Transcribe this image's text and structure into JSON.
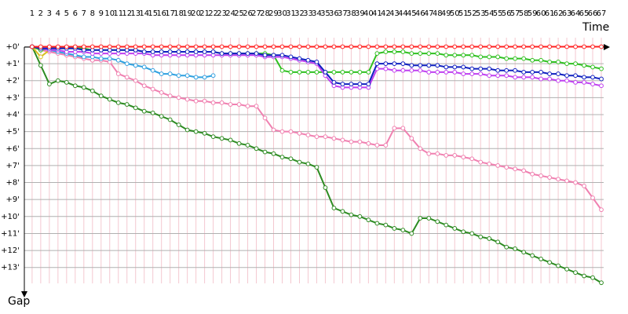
{
  "chart_data": {
    "type": "line",
    "x_label": "Time",
    "y_label": "Gap",
    "x": [
      1,
      2,
      3,
      4,
      5,
      6,
      7,
      8,
      9,
      10,
      11,
      12,
      13,
      14,
      15,
      16,
      17,
      18,
      19,
      20,
      21,
      22,
      23,
      24,
      25,
      26,
      27,
      28,
      29,
      30,
      31,
      32,
      33,
      34,
      35,
      36,
      37,
      38,
      39,
      40,
      41,
      42,
      43,
      44,
      45,
      46,
      47,
      48,
      49,
      50,
      51,
      52,
      53,
      54,
      55,
      56,
      57,
      58,
      59,
      60,
      61,
      62,
      63,
      64,
      65,
      66,
      67
    ],
    "xlim": [
      0.1,
      68
    ],
    "ylim": [
      -0.9,
      14.4
    ],
    "yticks": [
      {
        "value": 0,
        "label": "+0'"
      },
      {
        "value": 1,
        "label": "+1'"
      },
      {
        "value": 2,
        "label": "+2'"
      },
      {
        "value": 3,
        "label": "+3'"
      },
      {
        "value": 4,
        "label": "+4'"
      },
      {
        "value": 5,
        "label": "+5'"
      },
      {
        "value": 6,
        "label": "+6'"
      },
      {
        "value": 7,
        "label": "+7'"
      },
      {
        "value": 8,
        "label": "+8'"
      },
      {
        "value": 9,
        "label": "+9'"
      },
      {
        "value": 10,
        "label": "+10'"
      },
      {
        "value": 11,
        "label": "+11'"
      },
      {
        "value": 12,
        "label": "+12'"
      },
      {
        "value": 13,
        "label": "+13'"
      }
    ],
    "grid": true,
    "series": [
      {
        "color": "#2e8b22",
        "values": [
          0,
          1.1,
          2.2,
          2.0,
          2.1,
          2.3,
          2.4,
          2.6,
          2.9,
          3.1,
          3.3,
          3.4,
          3.6,
          3.8,
          3.9,
          4.1,
          4.3,
          4.6,
          4.9,
          5.0,
          5.1,
          5.3,
          5.4,
          5.5,
          5.7,
          5.8,
          6.0,
          6.2,
          6.3,
          6.5,
          6.6,
          6.8,
          6.9,
          7.1,
          8.3,
          9.5,
          9.7,
          9.9,
          10.0,
          10.2,
          10.4,
          10.5,
          10.7,
          10.8,
          11.0,
          10.1,
          10.1,
          10.3,
          10.5,
          10.7,
          10.9,
          11.0,
          11.2,
          11.3,
          11.5,
          11.8,
          11.9,
          12.1,
          12.3,
          12.5,
          12.7,
          12.9,
          13.1,
          13.3,
          13.5,
          13.6,
          13.9
        ]
      },
      {
        "color": "#f080b0",
        "values": [
          0,
          0.2,
          0.3,
          0.4,
          0.5,
          0.6,
          0.7,
          0.8,
          0.8,
          0.9,
          1.6,
          1.8,
          2.0,
          2.3,
          2.5,
          2.7,
          2.9,
          3.0,
          3.1,
          3.2,
          3.2,
          3.3,
          3.3,
          3.4,
          3.4,
          3.5,
          3.5,
          4.2,
          4.9,
          5.0,
          5.0,
          5.1,
          5.2,
          5.3,
          5.3,
          5.4,
          5.5,
          5.6,
          5.6,
          5.7,
          5.8,
          5.8,
          4.8,
          4.8,
          5.4,
          6.0,
          6.3,
          6.3,
          6.4,
          6.4,
          6.5,
          6.6,
          6.8,
          6.9,
          7.0,
          7.1,
          7.2,
          7.3,
          7.5,
          7.6,
          7.7,
          7.8,
          7.9,
          8.0,
          8.2,
          8.9,
          9.6
        ]
      },
      {
        "color": "#30a0e0",
        "values": [
          0,
          0.1,
          0.2,
          0.3,
          0.4,
          0.5,
          0.6,
          0.6,
          0.7,
          0.7,
          0.8,
          1.0,
          1.1,
          1.2,
          1.4,
          1.6,
          1.6,
          1.7,
          1.7,
          1.8,
          1.8,
          1.7,
          null,
          null,
          null,
          null,
          null,
          null,
          null,
          null,
          null,
          null,
          null,
          null,
          null,
          null,
          null,
          null,
          null,
          null,
          null,
          null,
          null,
          null,
          null,
          null,
          null,
          null,
          null,
          null,
          null,
          null,
          null,
          null,
          null,
          null,
          null,
          null,
          null,
          null,
          null,
          null,
          null,
          null,
          null,
          null,
          null
        ]
      },
      {
        "color": "#d8c020",
        "values": [
          0,
          0.6,
          0.2,
          null,
          null,
          null,
          null,
          null,
          null,
          null,
          null,
          null,
          null,
          null,
          null,
          null,
          null,
          null,
          null,
          null,
          null,
          null,
          null,
          null,
          null,
          null,
          null,
          null,
          null,
          null,
          null,
          null,
          null,
          null,
          null,
          null,
          null,
          null,
          null,
          null,
          null,
          null,
          null,
          null,
          null,
          null,
          null,
          null,
          null,
          null,
          null,
          null,
          null,
          null,
          null,
          null,
          null,
          null,
          null,
          null,
          null,
          null,
          null,
          null,
          null,
          null,
          null
        ]
      },
      {
        "color": "#30c020",
        "values": [
          0,
          0.2,
          0.1,
          0.1,
          0.1,
          0.1,
          0.1,
          0.2,
          0.2,
          0.2,
          0.2,
          0.2,
          0.2,
          0.3,
          0.3,
          0.3,
          0.3,
          0.3,
          0.3,
          0.3,
          0.3,
          0.3,
          0.4,
          0.4,
          0.4,
          0.4,
          0.4,
          0.4,
          0.5,
          1.4,
          1.5,
          1.5,
          1.5,
          1.5,
          1.5,
          1.5,
          1.5,
          1.5,
          1.5,
          1.5,
          0.4,
          0.3,
          0.3,
          0.3,
          0.4,
          0.4,
          0.4,
          0.4,
          0.5,
          0.5,
          0.5,
          0.5,
          0.6,
          0.6,
          0.6,
          0.7,
          0.7,
          0.7,
          0.8,
          0.8,
          0.9,
          0.9,
          1.0,
          1.0,
          1.1,
          1.2,
          1.3
        ]
      },
      {
        "color": "#c040f0",
        "values": [
          0,
          0.1,
          0.2,
          0.2,
          0.3,
          0.3,
          0.3,
          0.4,
          0.4,
          0.4,
          0.4,
          0.4,
          0.4,
          0.4,
          0.5,
          0.5,
          0.5,
          0.5,
          0.5,
          0.5,
          0.5,
          0.5,
          0.5,
          0.5,
          0.5,
          0.5,
          0.5,
          0.6,
          0.6,
          0.6,
          0.7,
          0.8,
          0.9,
          1.0,
          1.7,
          2.3,
          2.4,
          2.4,
          2.4,
          2.4,
          1.3,
          1.3,
          1.4,
          1.4,
          1.4,
          1.4,
          1.5,
          1.5,
          1.5,
          1.5,
          1.6,
          1.6,
          1.6,
          1.7,
          1.7,
          1.7,
          1.8,
          1.8,
          1.8,
          1.9,
          1.9,
          2.0,
          2.0,
          2.1,
          2.1,
          2.2,
          2.3
        ]
      },
      {
        "color": "#1020c0",
        "values": [
          0,
          0.1,
          0.1,
          0.1,
          0.1,
          0.1,
          0.2,
          0.2,
          0.2,
          0.2,
          0.2,
          0.2,
          0.2,
          0.3,
          0.3,
          0.3,
          0.3,
          0.3,
          0.3,
          0.3,
          0.3,
          0.3,
          0.4,
          0.4,
          0.4,
          0.4,
          0.4,
          0.5,
          0.5,
          0.5,
          0.6,
          0.7,
          0.8,
          0.9,
          1.5,
          2.1,
          2.2,
          2.2,
          2.2,
          2.2,
          1.0,
          1.0,
          1.0,
          1.0,
          1.1,
          1.1,
          1.1,
          1.1,
          1.2,
          1.2,
          1.2,
          1.3,
          1.3,
          1.3,
          1.4,
          1.4,
          1.4,
          1.5,
          1.5,
          1.5,
          1.6,
          1.6,
          1.7,
          1.7,
          1.8,
          1.8,
          1.9
        ]
      },
      {
        "color": "#ff2020",
        "values": [
          0,
          0,
          0,
          0,
          0,
          0,
          0,
          0,
          0,
          0,
          0,
          0,
          0,
          0,
          0,
          0,
          0,
          0,
          0,
          0,
          0,
          0,
          0,
          0,
          0,
          0,
          0,
          0,
          0,
          0,
          0,
          0,
          0,
          0,
          0,
          0,
          0,
          0,
          0,
          0,
          0,
          0,
          0,
          0,
          0,
          0,
          0,
          0,
          0,
          0,
          0,
          0,
          0,
          0,
          0,
          0,
          0,
          0,
          0,
          0,
          0,
          0,
          0,
          0,
          0,
          0,
          0
        ]
      }
    ]
  }
}
